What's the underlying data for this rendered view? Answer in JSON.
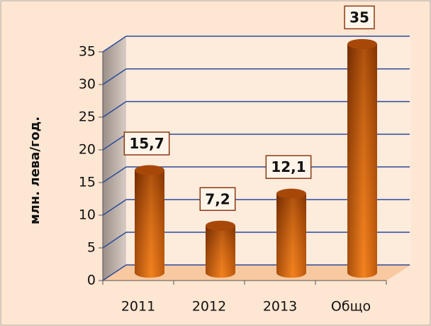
{
  "chart_data": {
    "type": "bar",
    "y_label": "млн. лева/год.",
    "categories": [
      "2011",
      "2012",
      "2013",
      "Общо"
    ],
    "values": [
      15.7,
      7.2,
      12.1,
      35
    ],
    "value_labels": [
      "15,7",
      "7,2",
      "12,1",
      "35"
    ],
    "color": "#d9600f",
    "ylim": [
      0,
      35
    ],
    "yticks": [
      0,
      5,
      10,
      15,
      20,
      25,
      30,
      35
    ],
    "grid": true
  }
}
